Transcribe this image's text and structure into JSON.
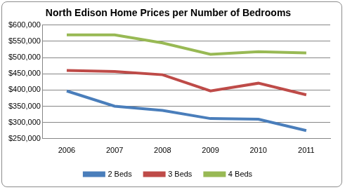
{
  "chart_data": {
    "type": "line",
    "title": "North Edison Home Prices per Number of Bedrooms",
    "categories": [
      "2006",
      "2007",
      "2008",
      "2009",
      "2010",
      "2011"
    ],
    "series": [
      {
        "name": "2 Beds",
        "color": "#4a7ebb",
        "values": [
          397000,
          350000,
          337000,
          312000,
          310000,
          275000
        ]
      },
      {
        "name": "3 Beds",
        "color": "#be4b48",
        "values": [
          460000,
          457000,
          447000,
          397000,
          421000,
          385000
        ]
      },
      {
        "name": "4 Beds",
        "color": "#98b954",
        "values": [
          570000,
          570000,
          545000,
          510000,
          518000,
          514000
        ]
      }
    ],
    "ylim": [
      250000,
      600000
    ],
    "yticks": [
      {
        "value": 250000,
        "label": "$250,000"
      },
      {
        "value": 300000,
        "label": "$300,000"
      },
      {
        "value": 350000,
        "label": "$350,000"
      },
      {
        "value": 400000,
        "label": "$400,000"
      },
      {
        "value": 450000,
        "label": "$450,000"
      },
      {
        "value": 500000,
        "label": "$500,000"
      },
      {
        "value": 550000,
        "label": "$550,000"
      },
      {
        "value": 600000,
        "label": "$600,000"
      }
    ],
    "grid": true,
    "legend": "bottom"
  }
}
